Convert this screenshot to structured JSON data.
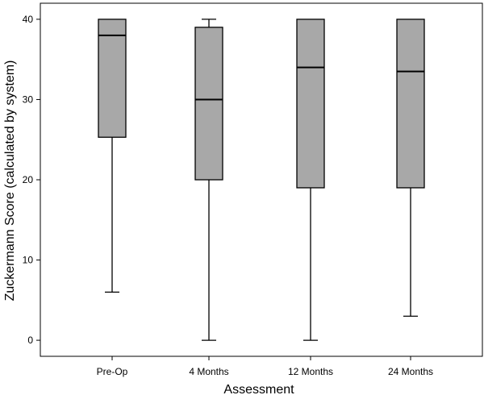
{
  "chart_data": {
    "type": "boxplot",
    "title": "",
    "xlabel": "Assessment",
    "ylabel": "Zuckermann Score (calculated by system)",
    "ylim": [
      -2,
      42
    ],
    "yticks": [
      0,
      10,
      20,
      30,
      40
    ],
    "grid": false,
    "categories": [
      "Pre-Op",
      "4 Months",
      "12 Months",
      "24 Months"
    ],
    "boxes": [
      {
        "category": "Pre-Op",
        "min": 6,
        "q1": 25.3,
        "median": 38,
        "q3": 40,
        "max": 40
      },
      {
        "category": "4 Months",
        "min": 0,
        "q1": 20,
        "median": 30,
        "q3": 39,
        "max": 40
      },
      {
        "category": "12 Months",
        "min": 0,
        "q1": 19,
        "median": 34,
        "q3": 40,
        "max": 40
      },
      {
        "category": "24 Months",
        "min": 3,
        "q1": 19,
        "median": 33.5,
        "q3": 40,
        "max": 40
      }
    ],
    "colors": {
      "box_fill": "#a8a8a8",
      "stroke": "#000000",
      "frame": "#000000",
      "background": "#ffffff"
    }
  }
}
